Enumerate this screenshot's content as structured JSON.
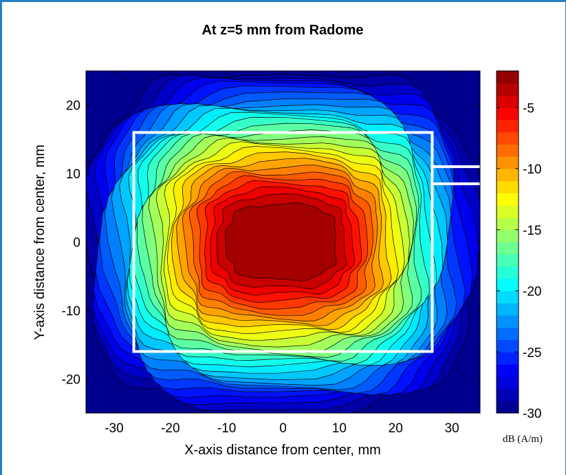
{
  "chart_data": {
    "type": "heatmap",
    "subtype": "filled-contour",
    "title": "At z=5 mm from Radome",
    "xlabel": "X-axis distance from center, mm",
    "ylabel": "Y-axis distance from center, mm",
    "xlim": [
      -35,
      35
    ],
    "ylim": [
      -25,
      25
    ],
    "xticks": [
      -30,
      -20,
      -10,
      0,
      10,
      20,
      30
    ],
    "yticks": [
      -20,
      -10,
      0,
      10,
      20
    ],
    "colorbar": {
      "label": "dB (A/m)",
      "range": [
        -30,
        -2
      ],
      "ticks": [
        -5,
        -10,
        -15,
        -20,
        -25,
        -30
      ],
      "colormap": "jet"
    },
    "field_model": {
      "peak_db": -3,
      "peak_center": [
        -1,
        0
      ],
      "floor_db": -30
    },
    "overlay_rectangle": {
      "x": [
        -26.5,
        26.5
      ],
      "y": [
        -16,
        16
      ],
      "color": "#ffffff"
    },
    "overlay_lines": [
      {
        "x": [
          26.5,
          35
        ],
        "y": 11
      },
      {
        "x": [
          26.5,
          35
        ],
        "y": 8.5
      }
    ]
  }
}
